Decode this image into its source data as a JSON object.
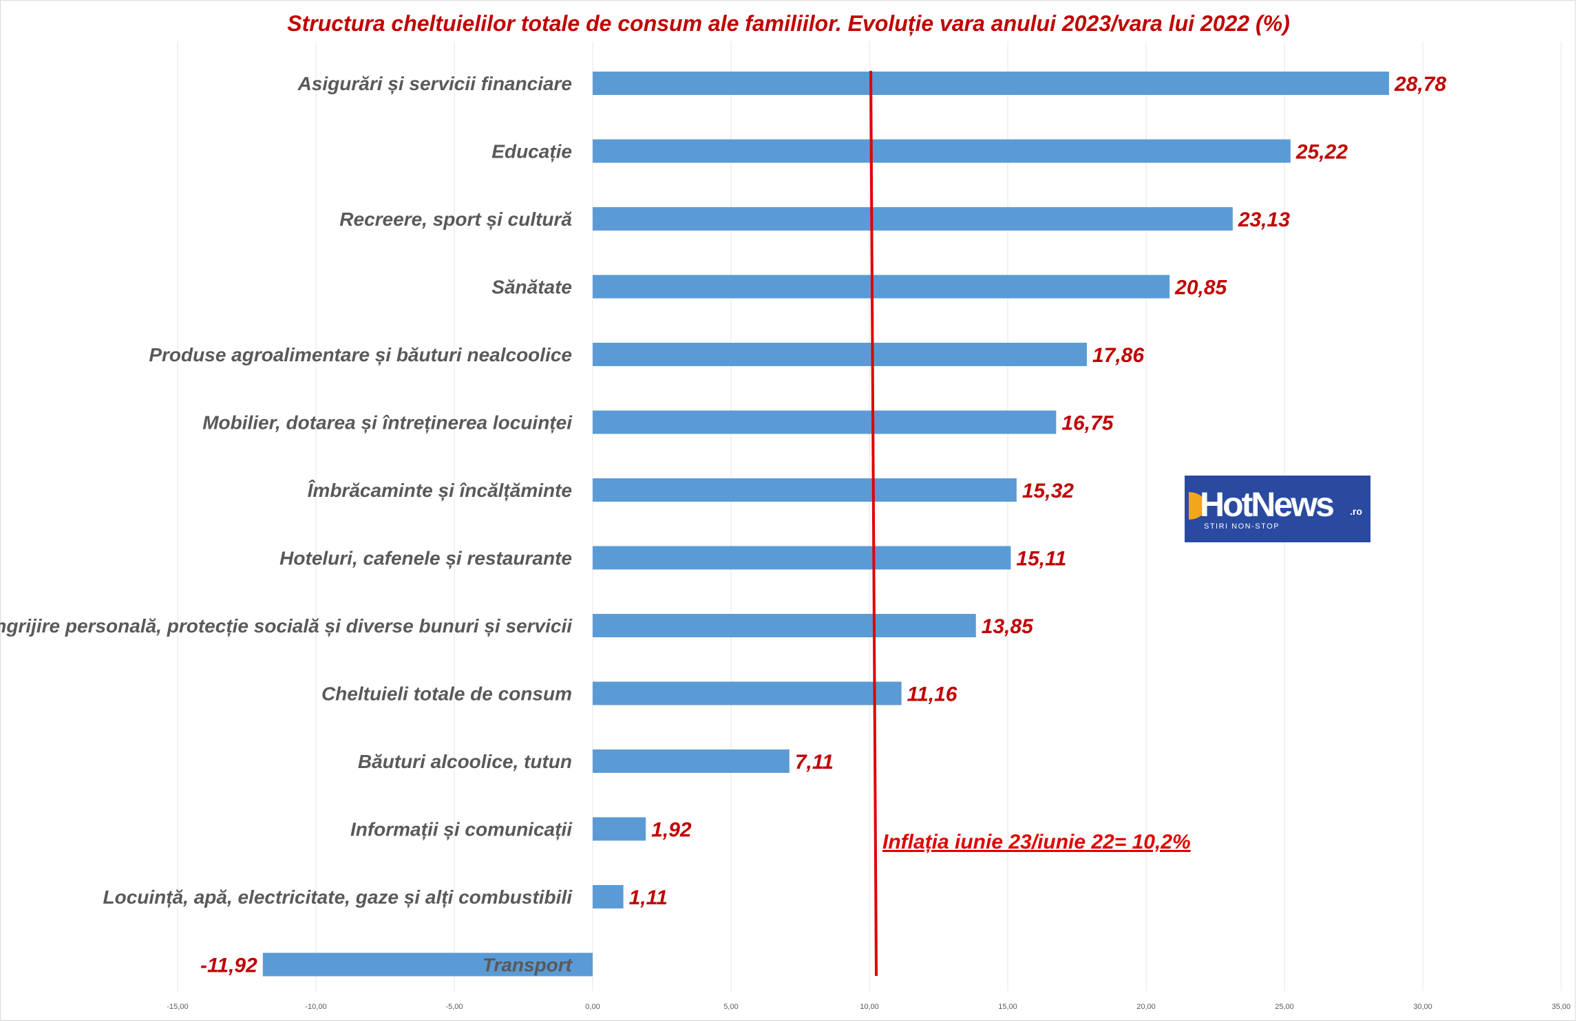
{
  "title": "Structura cheltuielilor totale de consum ale familiilor. Evoluție vara anului 2023/vara lui 2022 (%)",
  "annotation": "Inflația iunie 23/iunie 22= 10,2%",
  "logo": {
    "text": "HotNews",
    "suffix": ".ro",
    "tagline": "STIRI NON-STOP"
  },
  "colors": {
    "bar": "#5b9bd5",
    "value_label": "#c00000",
    "inflation_line": "#e00000",
    "logo_bg": "#2a4aa0"
  },
  "chart_data": {
    "type": "bar",
    "orientation": "horizontal",
    "categories": [
      "Asigurări și servicii financiare",
      "Educație",
      "Recreere, sport și cultură",
      "Sănătate",
      "Produse agroalimentare și băuturi nealcoolice",
      "Mobilier, dotarea și întreținerea locuinței",
      "Îmbrăcaminte și încălțăminte",
      "Hoteluri, cafenele și restaurante",
      "Îngrijire personală, protecție socială și diverse bunuri și servicii",
      "Cheltuieli totale de consum",
      "Băuturi alcoolice, tutun",
      "Informații și comunicații",
      "Locuință, apă, electricitate, gaze și alți combustibili",
      "Transport"
    ],
    "values": [
      28.78,
      25.22,
      23.13,
      20.85,
      17.86,
      16.75,
      15.32,
      15.11,
      13.85,
      11.16,
      7.11,
      1.92,
      1.11,
      -11.92
    ],
    "value_labels": [
      "28,78",
      "25,22",
      "23,13",
      "20,85",
      "17,86",
      "16,75",
      "15,32",
      "15,11",
      "13,85",
      "11,16",
      "7,11",
      "1,92",
      "1,11",
      "-11,92"
    ],
    "xlim": [
      -15,
      35
    ],
    "x_ticks": [
      -15,
      -10,
      -5,
      0,
      5,
      10,
      15,
      20,
      25,
      30,
      35
    ],
    "x_tick_labels": [
      "-15,00",
      "-10,00",
      "-5,00",
      "0,00",
      "5,00",
      "10,00",
      "15,00",
      "20,00",
      "25,00",
      "30,00",
      "35,00"
    ],
    "reference_line": {
      "x": 10.2
    },
    "grid": "vertical",
    "legend": "none"
  }
}
